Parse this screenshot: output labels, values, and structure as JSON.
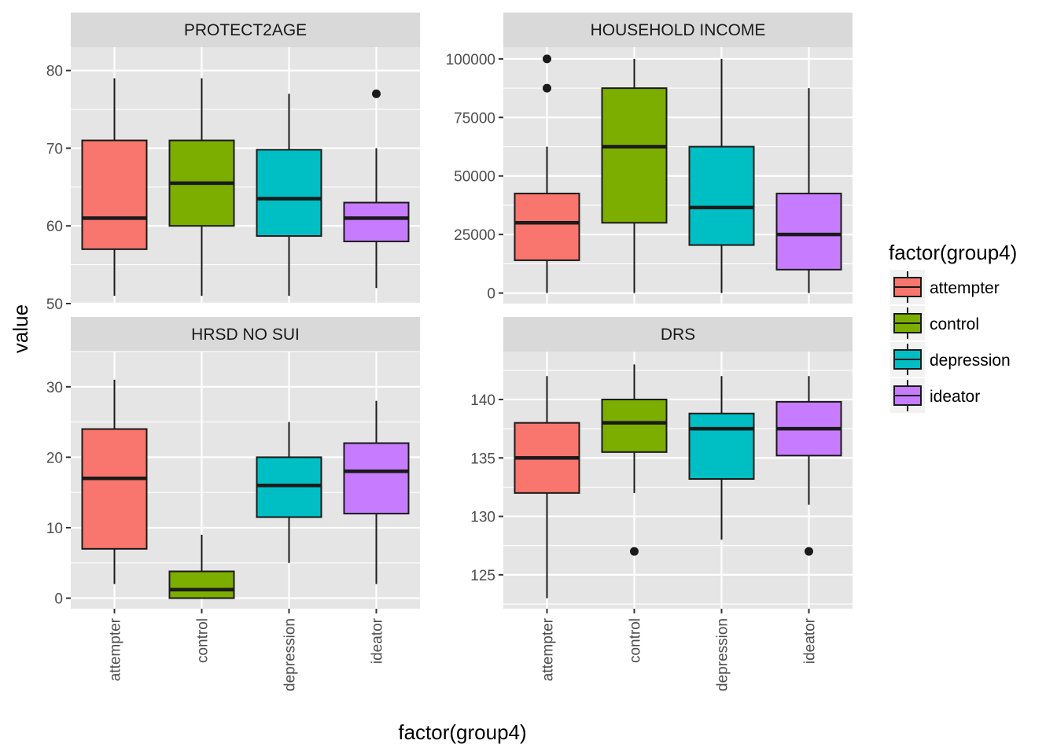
{
  "chart_data": {
    "type": "boxplot",
    "xlabel": "factor(group4)",
    "ylabel": "value",
    "legend": {
      "title": "factor(group4)",
      "position": "right",
      "items": [
        "attempter",
        "control",
        "depression",
        "ideator"
      ]
    },
    "colors": {
      "attempter": "#F8766D",
      "control": "#7CAE00",
      "depression": "#00BFC4",
      "ideator": "#C77CFF",
      "panel_bg": "#E5E5E5",
      "strip_bg": "#D9D9D9",
      "grid": "#FFFFFF",
      "box_stroke": "#1A1A1A"
    },
    "categories": [
      "attempter",
      "control",
      "depression",
      "ideator"
    ],
    "panels": [
      {
        "title": "PROTECT2AGE",
        "ylim": [
          50,
          83
        ],
        "yticks": [
          {
            "value": 50,
            "label": "50"
          },
          {
            "value": 60,
            "label": "60"
          },
          {
            "value": 70,
            "label": "70"
          },
          {
            "value": 80,
            "label": "80"
          }
        ],
        "boxes": [
          {
            "group": "attempter",
            "lower_whisker": 51,
            "q1": 57,
            "median": 61,
            "q3": 71,
            "upper_whisker": 79,
            "outliers": []
          },
          {
            "group": "control",
            "lower_whisker": 51,
            "q1": 60,
            "median": 65.5,
            "q3": 71,
            "upper_whisker": 79,
            "outliers": []
          },
          {
            "group": "depression",
            "lower_whisker": 51,
            "q1": 58.7,
            "median": 63.5,
            "q3": 69.8,
            "upper_whisker": 77,
            "outliers": []
          },
          {
            "group": "ideator",
            "lower_whisker": 52,
            "q1": 58,
            "median": 61,
            "q3": 63,
            "upper_whisker": 70,
            "outliers": [
              77
            ]
          }
        ]
      },
      {
        "title": "HOUSEHOLD INCOME",
        "ylim": [
          -4500,
          105000
        ],
        "yticks": [
          {
            "value": 0,
            "label": "0"
          },
          {
            "value": 25000,
            "label": "25000"
          },
          {
            "value": 50000,
            "label": "50000"
          },
          {
            "value": 75000,
            "label": "75000"
          },
          {
            "value": 100000,
            "label": "100000"
          }
        ],
        "boxes": [
          {
            "group": "attempter",
            "lower_whisker": 0,
            "q1": 14000,
            "median": 30000,
            "q3": 42500,
            "upper_whisker": 62500,
            "outliers": [
              87500,
              100000
            ]
          },
          {
            "group": "control",
            "lower_whisker": 0,
            "q1": 30000,
            "median": 62500,
            "q3": 87500,
            "upper_whisker": 100000,
            "outliers": []
          },
          {
            "group": "depression",
            "lower_whisker": 0,
            "q1": 20500,
            "median": 36500,
            "q3": 62500,
            "upper_whisker": 100000,
            "outliers": []
          },
          {
            "group": "ideator",
            "lower_whisker": 0,
            "q1": 10000,
            "median": 25000,
            "q3": 42500,
            "upper_whisker": 87500,
            "outliers": []
          }
        ]
      },
      {
        "title": "HRSD NO SUI",
        "ylim": [
          -1.5,
          35
        ],
        "yticks": [
          {
            "value": 0,
            "label": "0"
          },
          {
            "value": 10,
            "label": "10"
          },
          {
            "value": 20,
            "label": "20"
          },
          {
            "value": 30,
            "label": "30"
          }
        ],
        "boxes": [
          {
            "group": "attempter",
            "lower_whisker": 2,
            "q1": 7,
            "median": 17,
            "q3": 24,
            "upper_whisker": 31,
            "outliers": []
          },
          {
            "group": "control",
            "lower_whisker": 0,
            "q1": 0,
            "median": 1.2,
            "q3": 3.8,
            "upper_whisker": 9,
            "outliers": []
          },
          {
            "group": "depression",
            "lower_whisker": 5,
            "q1": 11.5,
            "median": 16,
            "q3": 20,
            "upper_whisker": 25,
            "outliers": []
          },
          {
            "group": "ideator",
            "lower_whisker": 2,
            "q1": 12,
            "median": 18,
            "q3": 22,
            "upper_whisker": 28,
            "outliers": []
          }
        ]
      },
      {
        "title": "DRS",
        "ylim": [
          122.1,
          144.1
        ],
        "yticks": [
          {
            "value": 125,
            "label": "125"
          },
          {
            "value": 130,
            "label": "130"
          },
          {
            "value": 135,
            "label": "135"
          },
          {
            "value": 140,
            "label": "140"
          }
        ],
        "boxes": [
          {
            "group": "attempter",
            "lower_whisker": 123,
            "q1": 132,
            "median": 135,
            "q3": 138,
            "upper_whisker": 142,
            "outliers": []
          },
          {
            "group": "control",
            "lower_whisker": 132,
            "q1": 135.5,
            "median": 138,
            "q3": 140,
            "upper_whisker": 143,
            "outliers": [
              127
            ]
          },
          {
            "group": "depression",
            "lower_whisker": 128,
            "q1": 133.2,
            "median": 137.5,
            "q3": 138.8,
            "upper_whisker": 142,
            "outliers": []
          },
          {
            "group": "ideator",
            "lower_whisker": 131,
            "q1": 135.2,
            "median": 137.5,
            "q3": 139.8,
            "upper_whisker": 142,
            "outliers": [
              127
            ]
          }
        ]
      }
    ]
  }
}
